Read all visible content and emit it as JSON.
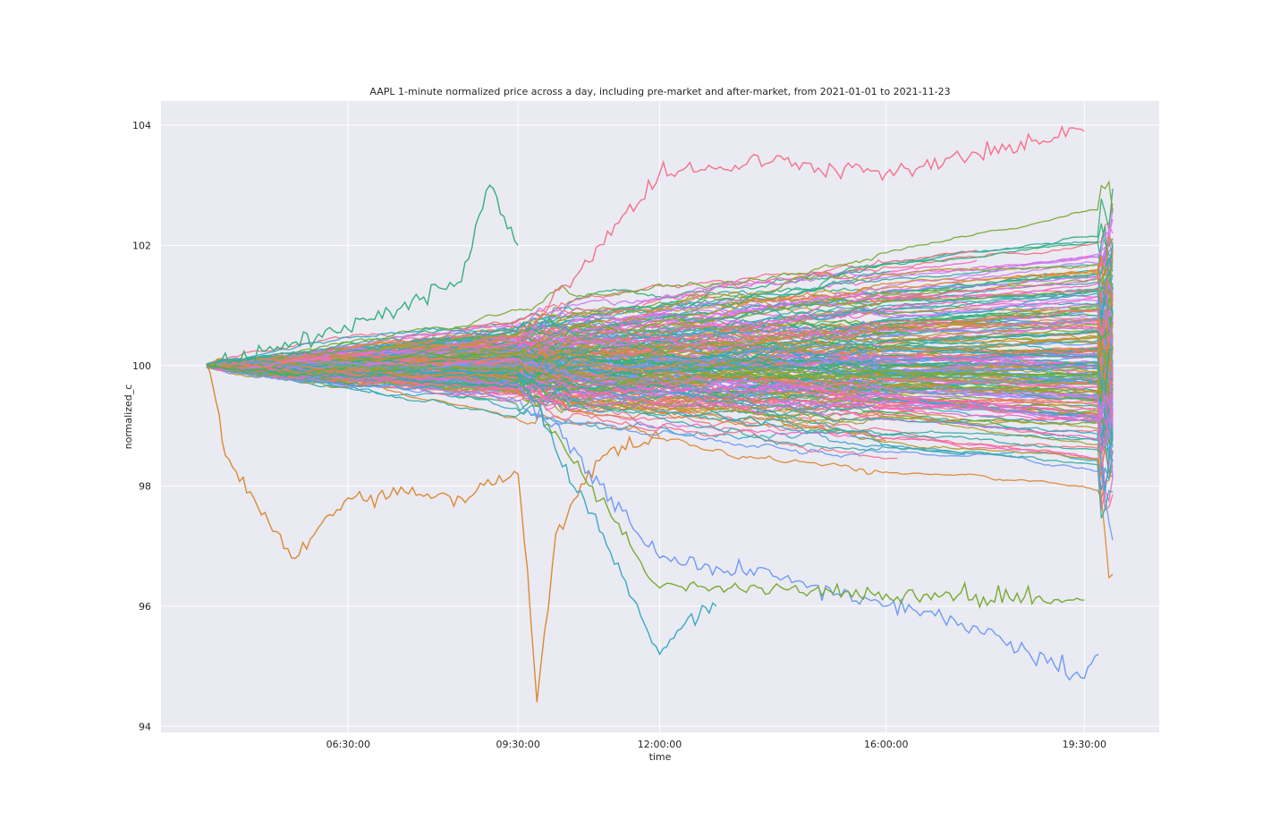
{
  "chart_data": {
    "type": "line",
    "title": "AAPL 1-minute normalized price across a day, including pre-market and after-market, from 2021-01-01 to 2021-11-23",
    "xlabel": "time",
    "ylabel": "normalized_c",
    "x_ticks": [
      "06:30:00",
      "09:30:00",
      "12:00:00",
      "16:00:00",
      "19:30:00"
    ],
    "x_range": [
      "04:00",
      "20:00"
    ],
    "y_ticks": [
      "94",
      "96",
      "98",
      "100",
      "102",
      "104"
    ],
    "ylim": [
      93.9,
      104.4
    ],
    "grid": true,
    "legend": "none",
    "series_count": 225,
    "palette": [
      "#f77189",
      "#dc8932",
      "#ae9d31",
      "#77ab31",
      "#33b07a",
      "#36ada4",
      "#38a9c5",
      "#6e9bf4",
      "#cc7af4",
      "#f565cc"
    ],
    "envelope": [
      {
        "time": "04:00",
        "min": 99.5,
        "max": 100.6
      },
      {
        "time": "06:30",
        "min": 97.2,
        "max": 101.1
      },
      {
        "time": "09:30",
        "min": 97.5,
        "max": 102.9
      },
      {
        "time": "12:00",
        "min": 95.3,
        "max": 103.3
      },
      {
        "time": "16:00",
        "min": 95.5,
        "max": 103.4
      },
      {
        "time": "19:30",
        "min": 94.8,
        "max": 103.9
      },
      {
        "time": "20:00",
        "min": 95.2,
        "max": 103.5
      }
    ],
    "notable_series": [
      {
        "points": [
          [
            "04:00",
            100.0
          ],
          [
            "04:10",
            99.4
          ],
          [
            "04:20",
            98.5
          ],
          [
            "04:50",
            97.8
          ],
          [
            "05:30",
            96.8
          ],
          [
            "06:30",
            97.8
          ],
          [
            "07:30",
            97.9
          ],
          [
            "08:30",
            97.8
          ],
          [
            "09:30",
            98.2
          ],
          [
            "09:40",
            96.6
          ],
          [
            "09:50",
            94.4
          ],
          [
            "10:10",
            97.2
          ],
          [
            "11:00",
            98.5
          ],
          [
            "12:00",
            98.8
          ]
        ]
      },
      {
        "points": [
          [
            "04:00",
            100.0
          ],
          [
            "06:30",
            100.6
          ],
          [
            "08:30",
            101.4
          ],
          [
            "09:00",
            103.0
          ],
          [
            "09:30",
            102.0
          ]
        ]
      },
      {
        "points": [
          [
            "09:30",
            99.7
          ],
          [
            "12:00",
            96.8
          ],
          [
            "14:00",
            96.5
          ],
          [
            "16:00",
            96.0
          ],
          [
            "17:00",
            95.8
          ],
          [
            "18:00",
            95.5
          ],
          [
            "19:30",
            94.8
          ],
          [
            "19:45",
            95.2
          ]
        ]
      },
      {
        "points": [
          [
            "09:30",
            100.4
          ],
          [
            "12:00",
            103.2
          ],
          [
            "14:00",
            103.4
          ],
          [
            "16:00",
            103.2
          ],
          [
            "19:30",
            103.9
          ]
        ]
      },
      {
        "points": [
          [
            "09:30",
            99.8
          ],
          [
            "12:00",
            96.3
          ],
          [
            "14:00",
            96.3
          ],
          [
            "16:00",
            96.2
          ],
          [
            "19:30",
            96.1
          ]
        ]
      },
      {
        "points": [
          [
            "09:30",
            99.9
          ],
          [
            "11:00",
            97.2
          ],
          [
            "12:00",
            95.2
          ],
          [
            "12:30",
            95.8
          ],
          [
            "13:00",
            96.0
          ]
        ]
      }
    ]
  }
}
